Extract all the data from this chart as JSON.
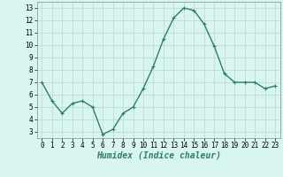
{
  "x": [
    0,
    1,
    2,
    3,
    4,
    5,
    6,
    7,
    8,
    9,
    10,
    11,
    12,
    13,
    14,
    15,
    16,
    17,
    18,
    19,
    20,
    21,
    22,
    23
  ],
  "y": [
    7.0,
    5.5,
    4.5,
    5.3,
    5.5,
    5.0,
    2.8,
    3.2,
    4.5,
    5.0,
    6.5,
    8.3,
    10.5,
    12.2,
    13.0,
    12.8,
    11.7,
    9.9,
    7.7,
    7.0,
    7.0,
    7.0,
    6.5,
    6.7
  ],
  "line_color": "#2e7d6e",
  "marker": "+",
  "marker_size": 3,
  "bg_color": "#d8f5f0",
  "grid_color": "#b8d8d4",
  "xlabel": "Humidex (Indice chaleur)",
  "xlim": [
    -0.5,
    23.5
  ],
  "ylim": [
    2.5,
    13.5
  ],
  "yticks": [
    3,
    4,
    5,
    6,
    7,
    8,
    9,
    10,
    11,
    12,
    13
  ],
  "xticks": [
    0,
    1,
    2,
    3,
    4,
    5,
    6,
    7,
    8,
    9,
    10,
    11,
    12,
    13,
    14,
    15,
    16,
    17,
    18,
    19,
    20,
    21,
    22,
    23
  ],
  "tick_fontsize": 5.5,
  "xlabel_fontsize": 7,
  "line_width": 1.0
}
